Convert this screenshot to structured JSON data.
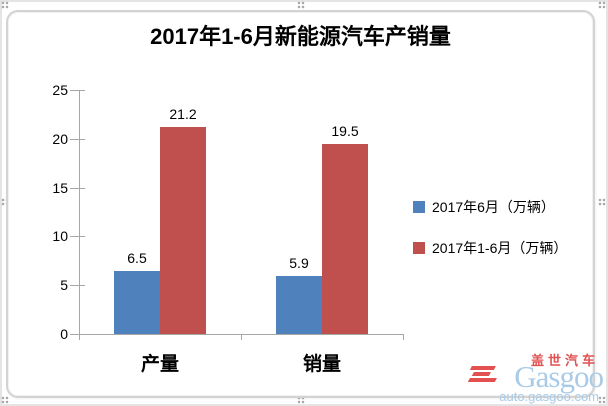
{
  "chart_data": {
    "type": "bar",
    "title": "2017年1-6月新能源汽车产销量",
    "categories": [
      "产量",
      "销量"
    ],
    "series": [
      {
        "name": "2017年6月（万辆）",
        "color": "#4F81BD",
        "values": [
          6.5,
          5.9
        ]
      },
      {
        "name": "2017年1-6月（万辆）",
        "color": "#C0504D",
        "values": [
          21.2,
          19.5
        ]
      }
    ],
    "data_labels": [
      "6.5",
      "21.2",
      "5.9",
      "19.5"
    ],
    "xlabel": "",
    "ylabel": "",
    "ylim": [
      0,
      25
    ],
    "yticks": [
      0,
      5,
      10,
      15,
      20,
      25
    ],
    "grid": false,
    "legend_position": "right"
  },
  "colors": {
    "axis": "#A6A6A6",
    "series_blue": "#4F81BD",
    "series_red": "#C0504D",
    "frame": "#D3D3D3"
  },
  "watermark": {
    "brand_cn": "盖世汽车",
    "brand_en": "Gasgoo",
    "url": "auto.gasgoo.com",
    "blue": "#A9CBE8",
    "red": "#E25050"
  }
}
